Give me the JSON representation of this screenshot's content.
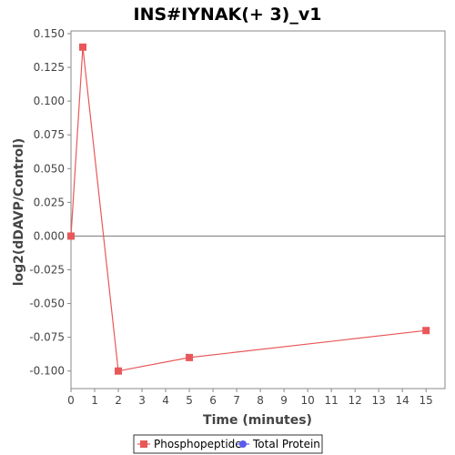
{
  "chart_data": {
    "type": "line",
    "title": "INS#IYNAK(+ 3)_v1",
    "xlabel": "Time (minutes)",
    "ylabel": "log2(dDAVP/Control)",
    "xlim": [
      0,
      15.8
    ],
    "ylim": [
      -0.113,
      0.152
    ],
    "x_ticks": [
      0,
      1,
      2,
      3,
      4,
      5,
      6,
      7,
      8,
      9,
      10,
      11,
      12,
      13,
      14,
      15
    ],
    "x_tick_labels": [
      "0",
      "1",
      "2",
      "3",
      "4",
      "5",
      "6",
      "7",
      "8",
      "9",
      "10",
      "11",
      "12",
      "13",
      "14",
      "15"
    ],
    "y_ticks": [
      0.15,
      0.125,
      0.1,
      0.075,
      0.05,
      0.025,
      0.0,
      -0.025,
      -0.05,
      -0.075,
      -0.1
    ],
    "y_tick_labels": [
      "0.150",
      "0.125",
      "0.100",
      "0.075",
      "0.050",
      "0.025",
      "0.000",
      "-0.025",
      "-0.050",
      "-0.075",
      "-0.100"
    ],
    "zero_line": true,
    "grid": false,
    "legend_position": "bottom",
    "series": [
      {
        "name": "Phosphopeptide",
        "color": "#e8585a",
        "marker": "square",
        "x": [
          0,
          0.5,
          2,
          5,
          15
        ],
        "y": [
          0.0,
          0.14,
          -0.1,
          -0.09,
          -0.07
        ]
      },
      {
        "name": "Total Protein",
        "color": "#5b5bef",
        "marker": "circle",
        "x": [],
        "y": []
      }
    ]
  }
}
